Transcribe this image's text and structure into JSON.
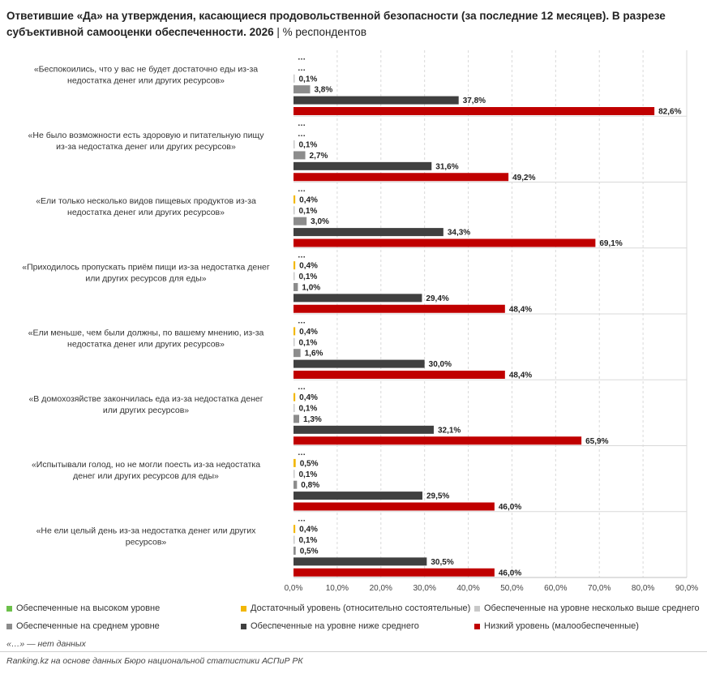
{
  "title": {
    "main": "Ответившие «Да» на утверждения, касающиеся продовольственной безопасности (за последние 12 месяцев). В разрезе субъективной самооценки обеспеченности. 2026",
    "separator": " | ",
    "unit": "% респондентов"
  },
  "chart_data": {
    "type": "bar",
    "orientation": "horizontal",
    "xlim": [
      0,
      90
    ],
    "x_ticks": [
      "0,0%",
      "10,0%",
      "20,0%",
      "30,0%",
      "40,0%",
      "50,0%",
      "60,0%",
      "70,0%",
      "80,0%",
      "90,0%"
    ],
    "grid": true,
    "legend_position": "bottom",
    "categories": [
      "«Беспокоились, что у вас не будет достаточно еды из-за недостатка денег или других ресурсов»",
      "«Не было возможности есть здоровую и питательную пищу из-за недостатка денег или других ресурсов»",
      "«Ели только несколько видов пищевых продуктов из-за недостатка денег или других ресурсов»",
      "«Приходилось пропускать приём пищи из-за недостатка денег или других ресурсов для еды»",
      "«Ели меньше, чем были должны, по вашему мнению, из-за недостатка денег или других ресурсов»",
      "«В домохозяйстве закончилась еда из-за недостатка денег или других ресурсов»",
      "«Испытывали голод, но не могли поесть из-за недостатка денег или других ресурсов для еды»",
      "«Не ели целый день из-за недостатка денег или других ресурсов»"
    ],
    "series": [
      {
        "name": "Обеспеченные на высоком уровне",
        "color": "#6cc04a",
        "values": [
          null,
          null,
          null,
          null,
          null,
          null,
          null,
          null
        ],
        "labels": [
          "…",
          "…",
          "…",
          "…",
          "…",
          "…",
          "…",
          "…"
        ]
      },
      {
        "name": "Достаточный уровень (относительно состоятельные)",
        "color": "#f2b705",
        "values": [
          null,
          null,
          0.4,
          0.4,
          0.4,
          0.4,
          0.5,
          0.4
        ],
        "labels": [
          "…",
          "…",
          "0,4%",
          "0,4%",
          "0,4%",
          "0,4%",
          "0,5%",
          "0,4%"
        ]
      },
      {
        "name": "Обеспеченные на уровне несколько выше среднего",
        "color": "#c8c8c8",
        "values": [
          0.1,
          0.1,
          0.1,
          0.1,
          0.1,
          0.1,
          0.1,
          0.1
        ],
        "labels": [
          "0,1%",
          "0,1%",
          "0,1%",
          "0,1%",
          "0,1%",
          "0,1%",
          "0,1%",
          "0,1%"
        ]
      },
      {
        "name": "Обеспеченные на среднем уровне",
        "color": "#8c8c8c",
        "values": [
          3.8,
          2.7,
          3.0,
          1.0,
          1.6,
          1.3,
          0.8,
          0.5
        ],
        "labels": [
          "3,8%",
          "2,7%",
          "3,0%",
          "1,0%",
          "1,6%",
          "1,3%",
          "0,8%",
          "0,5%"
        ]
      },
      {
        "name": "Обеспеченные на уровне ниже среднего",
        "color": "#404040",
        "values": [
          37.8,
          31.6,
          34.3,
          29.4,
          30.0,
          32.1,
          29.5,
          30.5
        ],
        "labels": [
          "37,8%",
          "31,6%",
          "34,3%",
          "29,4%",
          "30,0%",
          "32,1%",
          "29,5%",
          "30,5%"
        ]
      },
      {
        "name": "Низкий уровень (малообеспеченные)",
        "color": "#c00000",
        "values": [
          82.6,
          49.2,
          69.1,
          48.4,
          48.4,
          65.9,
          46.0,
          46.0
        ],
        "labels": [
          "82,6%",
          "49,2%",
          "69,1%",
          "48,4%",
          "48,4%",
          "65,9%",
          "46,0%",
          "46,0%"
        ]
      }
    ]
  },
  "footnote": "«…» — нет данных",
  "source": "Ranking.kz на основе данных Бюро национальной статистики АСПиР РК"
}
